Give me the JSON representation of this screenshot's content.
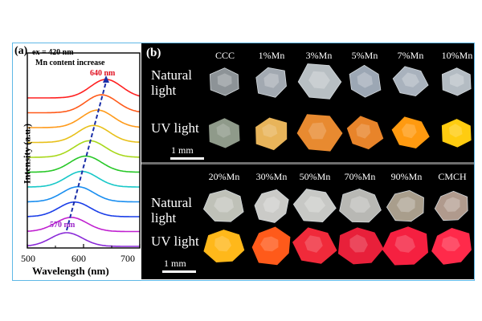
{
  "panel_a": {
    "label": "(a)",
    "excitation": "ex = 420 nm",
    "annotation": "Mn content increase",
    "peak_high_label": "640 nm",
    "peak_low_label": "570 nm",
    "ylabel": "Intensity (a.u.)",
    "xlabel": "Wavelength (nm)",
    "xticks": [
      "500",
      "600",
      "700"
    ],
    "colors": {
      "peak_high": "#e01020",
      "peak_low": "#9b27c9",
      "arrow": "#1a2ea8"
    }
  },
  "chart_data": {
    "type": "line",
    "title": "",
    "xlabel": "Wavelength (nm)",
    "ylabel": "Intensity (a.u.)",
    "xlim": [
      500,
      700
    ],
    "series": [
      {
        "color": "#ff2020",
        "peak_nm": 640
      },
      {
        "color": "#ff5a1a",
        "peak_nm": 632
      },
      {
        "color": "#ff9a1a",
        "peak_nm": 625
      },
      {
        "color": "#e8c01a",
        "peak_nm": 618
      },
      {
        "color": "#a8d81a",
        "peak_nm": 611
      },
      {
        "color": "#28c828",
        "peak_nm": 604
      },
      {
        "color": "#18c8c8",
        "peak_nm": 597
      },
      {
        "color": "#1a8ef0",
        "peak_nm": 590
      },
      {
        "color": "#1a3ee8",
        "peak_nm": 584
      },
      {
        "color": "#c020d0",
        "peak_nm": 578
      },
      {
        "color": "#8a2ad8",
        "peak_nm": 570
      }
    ]
  },
  "panel_b": {
    "label": "(b)",
    "top": {
      "columns": [
        "CCC",
        "1%Mn",
        "3%Mn",
        "5%Mn",
        "7%Mn",
        "10%Mn"
      ],
      "natural_label_1": "Natural",
      "natural_label_2": "light",
      "uv_label": "UV light",
      "scale": "1 mm",
      "natural_colors": [
        "#9aa0a4",
        "#b0b8c0",
        "#c8d0d4",
        "#aab6c4",
        "#b8c2ce",
        "#c4ccd4"
      ],
      "uv_colors": [
        "#8f9a8a",
        "#e8b45a",
        "#e88a30",
        "#e8842a",
        "#ff9a10",
        "#ffcc10"
      ]
    },
    "bottom": {
      "columns": [
        "20%Mn",
        "30%Mn",
        "50%Mn",
        "70%Mn",
        "90%Mn",
        "CMCH"
      ],
      "natural_label_1": "Natural",
      "natural_label_2": "light",
      "uv_label": "UV light",
      "scale": "1 mm",
      "natural_colors": [
        "#d0d2c8",
        "#dcdcd8",
        "#d8dad6",
        "#c8c8c4",
        "#b8ac98",
        "#bfa89a"
      ],
      "uv_colors": [
        "#ffb81a",
        "#ff5a1a",
        "#f02a3a",
        "#e8203a",
        "#f52040",
        "#ff2a4a"
      ]
    }
  }
}
